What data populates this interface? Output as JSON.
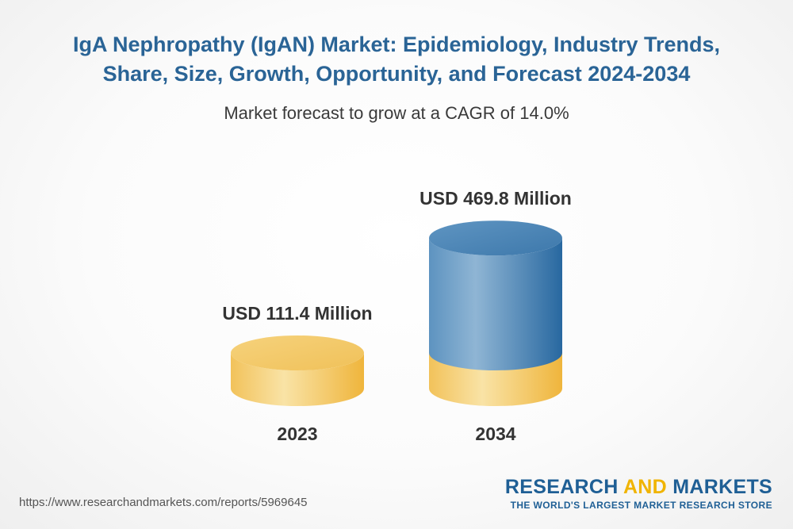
{
  "header": {
    "title_line1": "IgA Nephropathy (IgAN) Market: Epidemiology, Industry Trends,",
    "title_line2": "Share, Size, Growth, Opportunity, and Forecast 2024-2034",
    "subtitle": "Market forecast to grow at a CAGR of 14.0%"
  },
  "chart_data": {
    "type": "bar",
    "style": "3d-cylinder",
    "categories": [
      "2023",
      "2034"
    ],
    "values": [
      111.4,
      469.8
    ],
    "value_labels": [
      "USD 111.4 Million",
      "USD 469.8 Million"
    ],
    "unit": "USD Million",
    "title": "",
    "xlabel": "",
    "ylabel": "",
    "grid": false,
    "legend": "none"
  },
  "colors": {
    "title": "#2a6496",
    "base_gold": "#f2c65a",
    "growth_blue": "#3f7db0",
    "brand_blue": "#1f5f95",
    "brand_accent": "#f0b400"
  },
  "footer": {
    "source_url": "https://www.researchandmarkets.com/reports/5969645",
    "brand_part1": "RESEARCH",
    "brand_part2": "AND",
    "brand_part3": "MARKETS",
    "tagline": "THE WORLD'S LARGEST MARKET RESEARCH STORE"
  }
}
